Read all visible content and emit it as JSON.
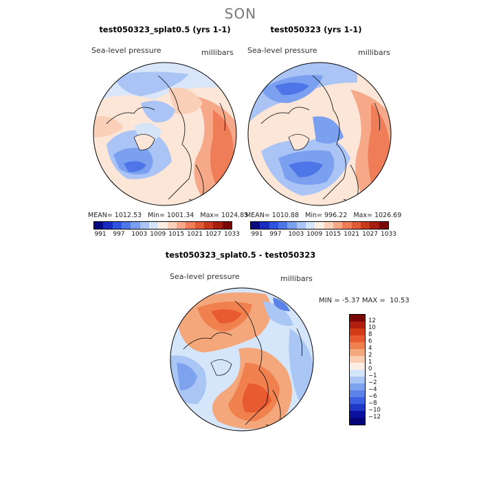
{
  "season": "SON",
  "panels": [
    {
      "title": "test050323_splat0.5 (yrs 1-1)",
      "variable": "Sea-level pressure",
      "units": "millibars",
      "stats": {
        "mean_label": "MEAN=",
        "mean": "1012.53",
        "min_label": "Min=",
        "min": "1001.34",
        "max_label": "Max=",
        "max": "1024.85"
      }
    },
    {
      "title": "test050323 (yrs 1-1)",
      "variable": "Sea-level pressure",
      "units": "millibars",
      "stats": {
        "mean_label": "MEAN=",
        "mean": "1010.88",
        "min_label": "Min=",
        "min": "996.22",
        "max_label": "Max=",
        "max": "1026.69"
      }
    }
  ],
  "abs_colorbar": {
    "ticks": [
      "991",
      "997",
      "1003",
      "1009",
      "1015",
      "1021",
      "1027",
      "1033"
    ],
    "colors": [
      "#08087f",
      "#1a2bbf",
      "#2f52e0",
      "#4f76e8",
      "#7ba0f0",
      "#a9c4f5",
      "#d6e4fa",
      "#fbeee4",
      "#fbd0b8",
      "#f6a988",
      "#ee7d58",
      "#e05a35",
      "#c93a1c",
      "#a81e0e",
      "#7a0606"
    ]
  },
  "diff_panel": {
    "title": "test050323_splat0.5 - test050323",
    "variable": "Sea-level pressure",
    "units": "millibars",
    "min_label": "MIN =",
    "min": "-5.37",
    "max_label": "MAX =",
    "max": "10.53"
  },
  "diff_colorbar": {
    "ticks": [
      "12",
      "10",
      "8",
      "6",
      "4",
      "2",
      "1",
      "0",
      "−1",
      "−2",
      "−4",
      "−6",
      "−8",
      "−10",
      "−12"
    ],
    "colors": [
      "#7a0606",
      "#b01e0e",
      "#d43a18",
      "#e85a2f",
      "#f0814f",
      "#f5a77c",
      "#f9cdb0",
      "#fbeee4",
      "#d6e6fa",
      "#aac6f5",
      "#7da3ef",
      "#5a82e8",
      "#3b5fe0",
      "#1f38c8",
      "#0a10a0",
      "#05057a"
    ]
  }
}
